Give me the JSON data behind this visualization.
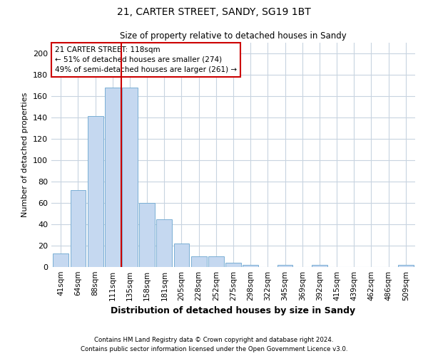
{
  "title1": "21, CARTER STREET, SANDY, SG19 1BT",
  "title2": "Size of property relative to detached houses in Sandy",
  "xlabel": "Distribution of detached houses by size in Sandy",
  "ylabel": "Number of detached properties",
  "footnote1": "Contains HM Land Registry data © Crown copyright and database right 2024.",
  "footnote2": "Contains public sector information licensed under the Open Government Licence v3.0.",
  "bar_color": "#c5d8f0",
  "bar_edge_color": "#7aafd4",
  "categories": [
    "41sqm",
    "64sqm",
    "88sqm",
    "111sqm",
    "135sqm",
    "158sqm",
    "181sqm",
    "205sqm",
    "228sqm",
    "252sqm",
    "275sqm",
    "298sqm",
    "322sqm",
    "345sqm",
    "369sqm",
    "392sqm",
    "415sqm",
    "439sqm",
    "462sqm",
    "486sqm",
    "509sqm"
  ],
  "values": [
    13,
    72,
    141,
    168,
    168,
    60,
    45,
    22,
    10,
    10,
    4,
    2,
    0,
    2,
    0,
    2,
    0,
    0,
    0,
    0,
    2
  ],
  "ylim": [
    0,
    210
  ],
  "yticks": [
    0,
    20,
    40,
    60,
    80,
    100,
    120,
    140,
    160,
    180,
    200
  ],
  "red_line_x": 3.52,
  "annotation_text": "21 CARTER STREET: 118sqm\n← 51% of detached houses are smaller (274)\n49% of semi-detached houses are larger (261) →",
  "annotation_box_color": "#ffffff",
  "annotation_box_edge": "#cc0000",
  "red_line_color": "#cc0000",
  "background_color": "#ffffff",
  "grid_color": "#c8d4e0"
}
